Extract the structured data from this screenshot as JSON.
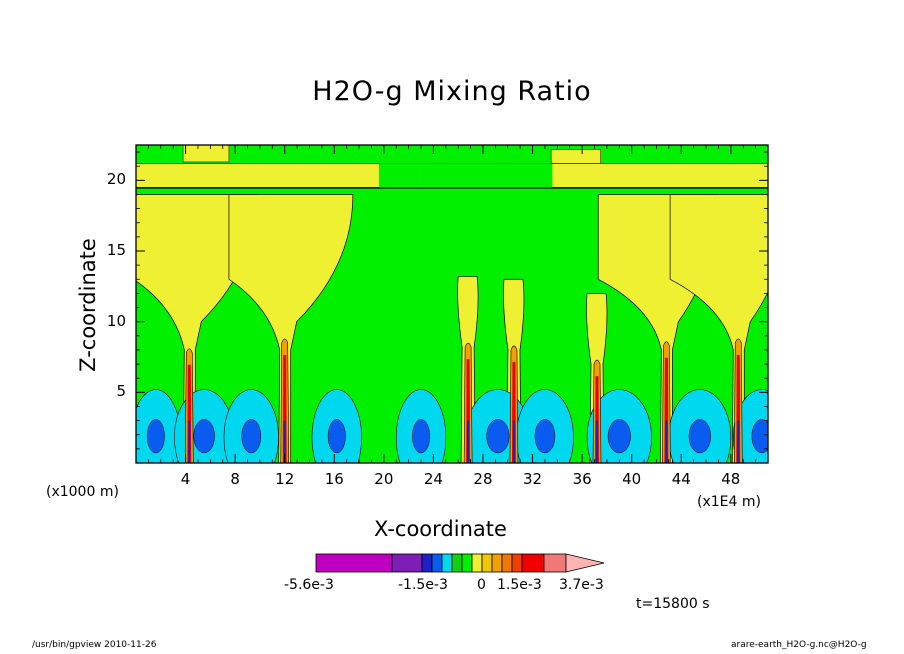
{
  "chart_data": {
    "type": "heatmap",
    "title": "H2O-g Mixing Ratio",
    "xlabel": "X-coordinate",
    "ylabel": "Z-coordinate",
    "x_unit_left": "(x1000 m)",
    "x_unit_right": "(x1E4 m)",
    "x_ticks": [
      "4",
      "8",
      "12",
      "16",
      "20",
      "24",
      "28",
      "32",
      "36",
      "40",
      "44",
      "48"
    ],
    "y_ticks": [
      "5",
      "10",
      "15",
      "20"
    ],
    "xlim": [
      0,
      51
    ],
    "ylim": [
      0,
      22.5
    ],
    "background_level": "0",
    "colorbar": {
      "tick_labels": [
        "-5.6e-3",
        "-1.5e-3",
        "0",
        "1.5e-3",
        "3.7e-3"
      ],
      "colors": [
        "#c000c0",
        "#7d1fb4",
        "#2020c8",
        "#0a5cf0",
        "#00d8f0",
        "#10d010",
        "#00f000",
        "#f0f032",
        "#f0c800",
        "#f0a000",
        "#f07800",
        "#f04000",
        "#f00000",
        "#f07878",
        "#ffb4b4"
      ]
    },
    "plumes": [
      {
        "x": 4.3,
        "top": 7.8,
        "anvil": "yes"
      },
      {
        "x": 12.0,
        "top": 8.5,
        "anvil": "yes"
      },
      {
        "x": 26.8,
        "top": 8.2,
        "anvil": "no"
      },
      {
        "x": 30.5,
        "top": 8.0,
        "anvil": "no"
      },
      {
        "x": 37.2,
        "top": 7.0,
        "anvil": "no"
      },
      {
        "x": 42.8,
        "top": 8.3,
        "anvil": "yes"
      },
      {
        "x": 48.6,
        "top": 8.5,
        "anvil": "yes"
      }
    ],
    "time_label": "t=15800 s"
  },
  "footer": {
    "left": "/usr/bin/gpview   2010-11-26",
    "right": "arare-earth_H2O-g.nc@H2O-g"
  }
}
